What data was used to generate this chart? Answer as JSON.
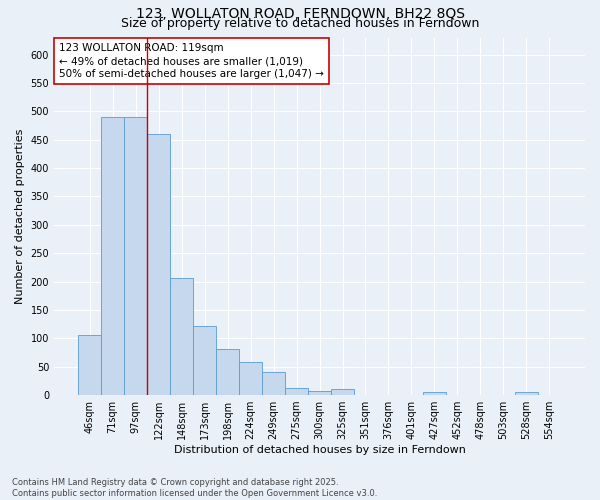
{
  "title": "123, WOLLATON ROAD, FERNDOWN, BH22 8QS",
  "subtitle": "Size of property relative to detached houses in Ferndown",
  "xlabel": "Distribution of detached houses by size in Ferndown",
  "ylabel": "Number of detached properties",
  "footer_line1": "Contains HM Land Registry data © Crown copyright and database right 2025.",
  "footer_line2": "Contains public sector information licensed under the Open Government Licence v3.0.",
  "bar_labels": [
    "46sqm",
    "71sqm",
    "97sqm",
    "122sqm",
    "148sqm",
    "173sqm",
    "198sqm",
    "224sqm",
    "249sqm",
    "275sqm",
    "300sqm",
    "325sqm",
    "351sqm",
    "376sqm",
    "401sqm",
    "427sqm",
    "452sqm",
    "478sqm",
    "503sqm",
    "528sqm",
    "554sqm"
  ],
  "bar_values": [
    105,
    490,
    490,
    460,
    207,
    122,
    82,
    58,
    40,
    13,
    8,
    10,
    0,
    0,
    0,
    5,
    0,
    0,
    0,
    5,
    0
  ],
  "bar_color": "#c5d8ed",
  "bar_edge_color": "#5b9bd5",
  "vline_x_idx": 3,
  "vline_color": "#cc0000",
  "annotation_title": "123 WOLLATON ROAD: 119sqm",
  "annotation_line1": "← 49% of detached houses are smaller (1,019)",
  "annotation_line2": "50% of semi-detached houses are larger (1,047) →",
  "annotation_box_color": "#cc0000",
  "ylim": [
    0,
    630
  ],
  "yticks": [
    0,
    50,
    100,
    150,
    200,
    250,
    300,
    350,
    400,
    450,
    500,
    550,
    600
  ],
  "bg_color": "#eaf0f8",
  "grid_color": "#ffffff",
  "title_fontsize": 10,
  "subtitle_fontsize": 9,
  "axis_label_fontsize": 8,
  "tick_fontsize": 7,
  "annotation_fontsize": 7.5,
  "footer_fontsize": 6
}
